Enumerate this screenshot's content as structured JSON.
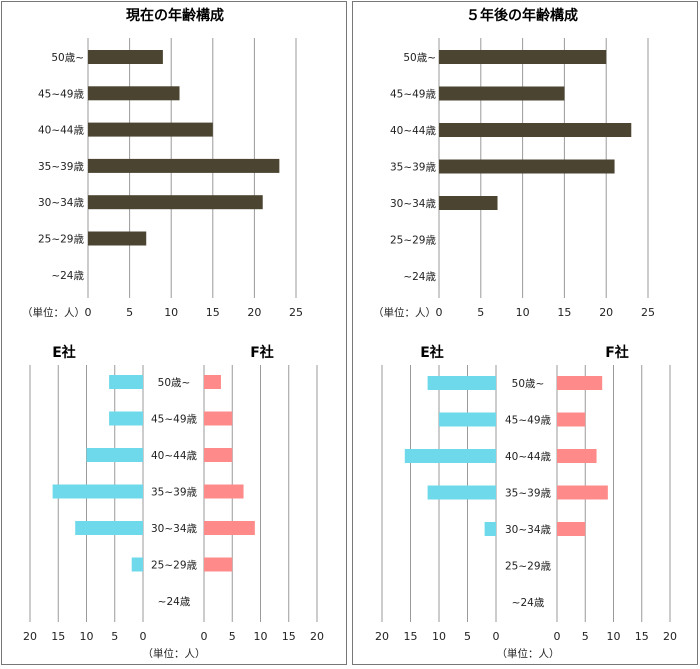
{
  "colors": {
    "current_bar": "#4a4430",
    "company_e": "#6dd9ea",
    "company_f": "#ff8a8a",
    "grid": "#9a9a9a"
  },
  "categories": [
    "50歳~",
    "45~49歳",
    "40~44歳",
    "35~39歳",
    "30~34歳",
    "25~29歳",
    "~24歳"
  ],
  "unit_label": "（単位：人）",
  "chart_data": [
    {
      "id": "left-top",
      "type": "bar",
      "orientation": "horizontal",
      "title": "現在の年齢構成",
      "categories": [
        "50歳~",
        "45~49歳",
        "40~44歳",
        "35~39歳",
        "30~34歳",
        "25~29歳",
        "~24歳"
      ],
      "values": [
        9,
        11,
        15,
        23,
        21,
        7,
        0
      ],
      "xlim": [
        0,
        25
      ],
      "xticks": [
        0,
        5,
        10,
        15,
        20,
        25
      ],
      "unit_label": "（単位：人）",
      "grid": true
    },
    {
      "id": "right-top",
      "type": "bar",
      "orientation": "horizontal",
      "title": "５年後の年齢構成",
      "categories": [
        "50歳~",
        "45~49歳",
        "40~44歳",
        "35~39歳",
        "30~34歳",
        "25~29歳",
        "~24歳"
      ],
      "values": [
        20,
        15,
        23,
        21,
        7,
        0,
        0
      ],
      "xlim": [
        0,
        25
      ],
      "xticks": [
        0,
        5,
        10,
        15,
        20,
        25
      ],
      "unit_label": "（単位：人）",
      "grid": true
    },
    {
      "id": "left-bottom",
      "type": "bar",
      "orientation": "horizontal",
      "layout": "butterfly",
      "categories": [
        "50歳~",
        "45~49歳",
        "40~44歳",
        "35~39歳",
        "30~34歳",
        "25~29歳",
        "~24歳"
      ],
      "series": [
        {
          "name": "E社",
          "values": [
            6,
            6,
            10,
            16,
            12,
            2,
            0
          ]
        },
        {
          "name": "F社",
          "values": [
            3,
            5,
            5,
            7,
            9,
            5,
            0
          ]
        }
      ],
      "xlim": [
        0,
        20
      ],
      "xticks": [
        0,
        5,
        10,
        15,
        20
      ],
      "unit_label": "（単位：人）",
      "grid": true
    },
    {
      "id": "right-bottom",
      "type": "bar",
      "orientation": "horizontal",
      "layout": "butterfly",
      "categories": [
        "50歳~",
        "45~49歳",
        "40~44歳",
        "35~39歳",
        "30~34歳",
        "25~29歳",
        "~24歳"
      ],
      "series": [
        {
          "name": "E社",
          "values": [
            12,
            10,
            16,
            12,
            2,
            0,
            0
          ]
        },
        {
          "name": "F社",
          "values": [
            8,
            5,
            7,
            9,
            5,
            0,
            0
          ]
        }
      ],
      "xlim": [
        0,
        20
      ],
      "xticks": [
        0,
        5,
        10,
        15,
        20
      ],
      "unit_label": "（単位：人）",
      "grid": true
    }
  ]
}
